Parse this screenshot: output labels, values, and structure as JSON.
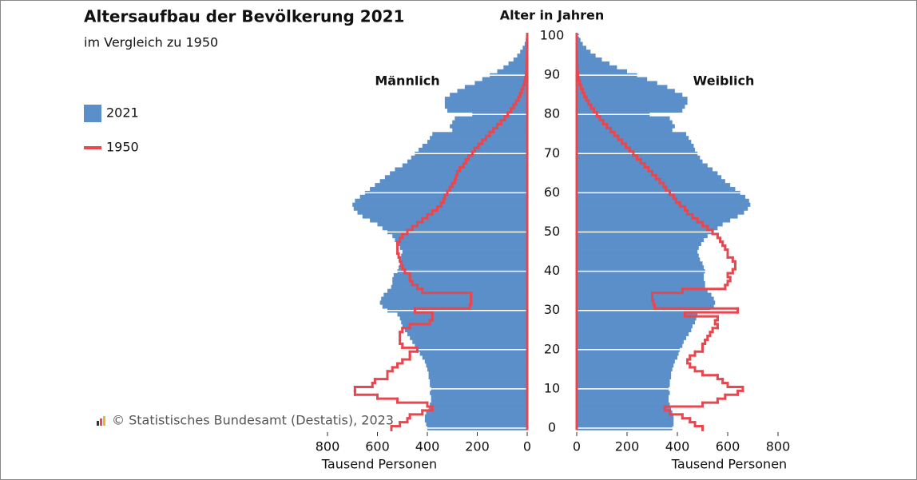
{
  "chart_data": {
    "type": "pyramid",
    "title": "Altersaufbau der Bevölkerung 2021",
    "subtitle": "im Vergleich zu 1950",
    "y_axis_title": "Alter in Jahren",
    "male_label": "Männlich",
    "female_label": "Weiblich",
    "x_axis_title": "Tausend Personen",
    "source": "© Statistisches Bundesamt (Destatis), 2023",
    "y": [
      0,
      1,
      2,
      3,
      4,
      5,
      6,
      7,
      8,
      9,
      10,
      11,
      12,
      13,
      14,
      15,
      16,
      17,
      18,
      19,
      20,
      21,
      22,
      23,
      24,
      25,
      26,
      27,
      28,
      29,
      30,
      31,
      32,
      33,
      34,
      35,
      36,
      37,
      38,
      39,
      40,
      41,
      42,
      43,
      44,
      45,
      46,
      47,
      48,
      49,
      50,
      51,
      52,
      53,
      54,
      55,
      56,
      57,
      58,
      59,
      60,
      61,
      62,
      63,
      64,
      65,
      66,
      67,
      68,
      69,
      70,
      71,
      72,
      73,
      74,
      75,
      76,
      77,
      78,
      79,
      80,
      81,
      82,
      83,
      84,
      85,
      86,
      87,
      88,
      89,
      90,
      91,
      92,
      93,
      94,
      95,
      96,
      97,
      98,
      99,
      100
    ],
    "ylim": [
      -0.5,
      100.5
    ],
    "yticks": [
      0,
      10,
      20,
      30,
      40,
      50,
      60,
      70,
      80,
      90,
      100
    ],
    "xlim": [
      0,
      800
    ],
    "xticks": [
      0,
      200,
      400,
      600,
      800
    ],
    "series": [
      {
        "name": "2021",
        "color": "#5b8fc9",
        "male": [
          400,
          405,
          410,
          410,
          405,
          395,
          390,
          385,
          385,
          390,
          385,
          390,
          390,
          395,
          395,
          400,
          405,
          410,
          420,
          430,
          440,
          450,
          460,
          470,
          480,
          490,
          500,
          505,
          510,
          520,
          560,
          580,
          590,
          585,
          575,
          560,
          545,
          540,
          540,
          535,
          520,
          515,
          510,
          505,
          505,
          500,
          510,
          520,
          530,
          540,
          560,
          580,
          600,
          630,
          660,
          680,
          695,
          700,
          690,
          670,
          650,
          630,
          610,
          590,
          570,
          550,
          530,
          500,
          480,
          465,
          450,
          435,
          420,
          400,
          390,
          380,
          300,
          310,
          300,
          290,
          220,
          320,
          330,
          330,
          330,
          310,
          280,
          250,
          210,
          180,
          150,
          120,
          95,
          75,
          55,
          40,
          28,
          18,
          10,
          6,
          4
        ],
        "female": [
          380,
          385,
          385,
          385,
          380,
          375,
          370,
          365,
          365,
          370,
          365,
          370,
          370,
          375,
          375,
          380,
          385,
          390,
          400,
          405,
          410,
          420,
          425,
          435,
          445,
          455,
          460,
          470,
          475,
          480,
          530,
          545,
          550,
          545,
          535,
          520,
          510,
          510,
          505,
          505,
          510,
          505,
          500,
          490,
          485,
          480,
          485,
          495,
          505,
          520,
          540,
          560,
          580,
          610,
          640,
          665,
          680,
          690,
          685,
          670,
          650,
          630,
          610,
          590,
          575,
          560,
          540,
          520,
          500,
          490,
          480,
          470,
          465,
          455,
          445,
          435,
          380,
          390,
          380,
          370,
          290,
          420,
          430,
          440,
          440,
          420,
          390,
          360,
          320,
          280,
          240,
          200,
          160,
          130,
          100,
          75,
          55,
          38,
          24,
          15,
          9
        ]
      },
      {
        "name": "1950",
        "color": "#e8474f",
        "male": [
          544,
          510,
          480,
          470,
          420,
          380,
          400,
          520,
          600,
          690,
          690,
          620,
          610,
          560,
          560,
          540,
          520,
          500,
          470,
          470,
          440,
          500,
          510,
          510,
          510,
          500,
          470,
          390,
          380,
          380,
          450,
          230,
          225,
          225,
          225,
          420,
          440,
          460,
          470,
          470,
          490,
          500,
          505,
          510,
          515,
          520,
          520,
          520,
          510,
          500,
          480,
          460,
          440,
          420,
          400,
          380,
          360,
          345,
          335,
          330,
          320,
          310,
          300,
          290,
          285,
          280,
          270,
          255,
          245,
          235,
          220,
          210,
          195,
          180,
          165,
          150,
          135,
          120,
          105,
          90,
          78,
          65,
          55,
          45,
          35,
          28,
          22,
          16,
          11,
          7,
          5,
          3,
          2,
          1,
          1,
          1,
          0,
          0,
          0,
          0,
          0
        ],
        "female": [
          500,
          470,
          450,
          420,
          370,
          350,
          500,
          560,
          590,
          640,
          660,
          600,
          580,
          560,
          500,
          470,
          450,
          440,
          450,
          470,
          500,
          500,
          510,
          520,
          530,
          540,
          560,
          550,
          560,
          430,
          640,
          310,
          305,
          300,
          300,
          420,
          590,
          600,
          610,
          600,
          620,
          630,
          630,
          620,
          600,
          600,
          590,
          580,
          570,
          560,
          540,
          520,
          500,
          480,
          460,
          440,
          430,
          410,
          395,
          385,
          370,
          355,
          345,
          330,
          315,
          300,
          285,
          270,
          255,
          240,
          225,
          210,
          195,
          180,
          165,
          150,
          135,
          120,
          105,
          92,
          80,
          68,
          57,
          47,
          38,
          30,
          23,
          17,
          12,
          8,
          5,
          3,
          2,
          1,
          1,
          1,
          0,
          0,
          0,
          0,
          0
        ]
      }
    ]
  }
}
